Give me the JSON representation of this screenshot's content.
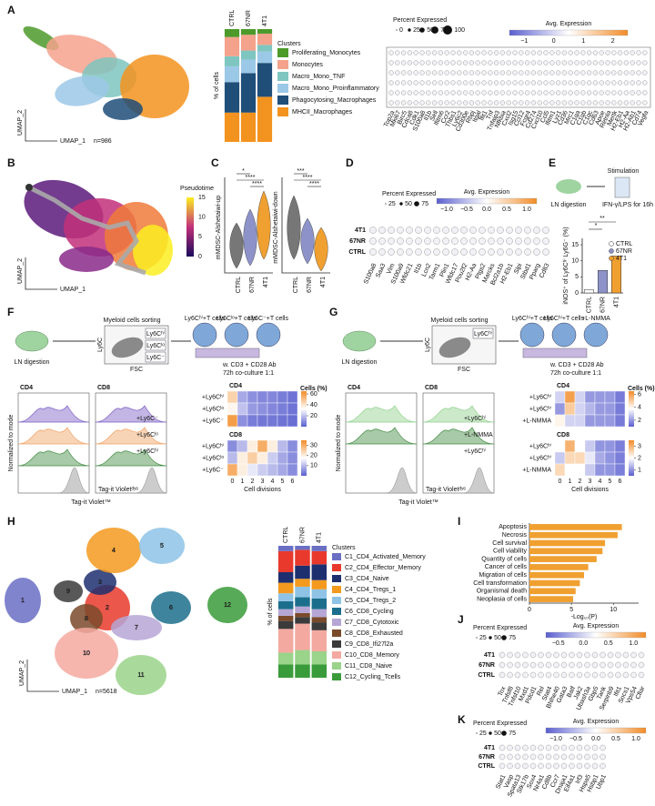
{
  "chart_data": [
    {
      "type": "stacked_bar",
      "categories": [
        "CTRL",
        "67NR",
        "4T1"
      ],
      "y_label": "% of cells",
      "ylim": [
        0,
        100
      ],
      "legend_title": "Clusters",
      "series": [
        {
          "name": "Proliferating_Monocytes",
          "color": "#4c9a2a",
          "values": [
            7,
            5,
            4
          ]
        },
        {
          "name": "Monocytes",
          "color": "#f4a28c",
          "values": [
            17,
            14,
            10
          ]
        },
        {
          "name": "Macro_Mono_TNF",
          "color": "#7fc6c0",
          "values": [
            9,
            8,
            6
          ]
        },
        {
          "name": "Macro_Mono_Proinflammatory",
          "color": "#9cc8e8",
          "values": [
            14,
            12,
            10
          ]
        },
        {
          "name": "Phagocytosing_Macrophages",
          "color": "#1f4e79",
          "values": [
            27,
            35,
            30
          ]
        },
        {
          "name": "MHCII_Macrophages",
          "color": "#f3931f",
          "values": [
            26,
            26,
            40
          ]
        }
      ]
    },
    {
      "type": "bar",
      "categories": [
        "CTRL",
        "67NR",
        "4T1"
      ],
      "values": [
        1,
        7,
        11.5
      ],
      "colors": [
        "#ffffff",
        "#8d93c9",
        "#f0a030"
      ],
      "y_label": "iNOS⁺ of Ly6Cʰⁱ Ly6G⁻ (%)",
      "ylim": [
        0,
        17
      ],
      "yticks": [
        0,
        5,
        10,
        15
      ]
    },
    {
      "type": "heatmap",
      "title": "CD4",
      "rows": [
        "+Ly6Cʰⁱ",
        "+Ly6Cˡᵒ",
        "+Ly6C⁻"
      ],
      "columns": [
        0,
        1,
        2,
        3,
        4,
        5,
        6
      ],
      "zlim": [
        0,
        65
      ],
      "zticks": [
        20,
        40,
        60
      ],
      "values": [
        [
          45,
          15,
          10,
          8,
          8,
          6,
          4
        ],
        [
          35,
          20,
          12,
          10,
          8,
          6,
          4
        ],
        [
          60,
          10,
          6,
          5,
          5,
          4,
          3
        ]
      ]
    },
    {
      "type": "heatmap",
      "title": "CD8",
      "rows": [
        "+Ly6Cʰⁱ",
        "+Ly6Cˡᵒ",
        "+Ly6C⁻"
      ],
      "columns": [
        0,
        1,
        2,
        3,
        4,
        5,
        6
      ],
      "zlim": [
        0,
        35
      ],
      "zticks": [
        10,
        20,
        30
      ],
      "values": [
        [
          5,
          10,
          20,
          30,
          20,
          10,
          5
        ],
        [
          10,
          20,
          25,
          20,
          12,
          8,
          5
        ],
        [
          30,
          20,
          15,
          12,
          10,
          8,
          5
        ]
      ]
    },
    {
      "type": "heatmap",
      "title": "CD4",
      "rows": [
        "+Ly6Cʰⁱ",
        "+Ly6Cʰⁱ",
        "+L-NMMA"
      ],
      "columns": [
        0,
        1,
        2,
        3,
        4,
        5,
        6
      ],
      "zlim": [
        1,
        6.5
      ],
      "zticks": [
        2,
        4,
        6
      ],
      "values": [
        [
          3,
          6,
          3,
          2,
          2,
          2,
          1.5
        ],
        [
          2,
          5,
          3,
          2.5,
          2,
          2,
          1.5
        ],
        [
          4,
          3,
          3,
          2,
          2,
          2,
          1.5
        ]
      ]
    },
    {
      "type": "heatmap",
      "title": "CD8",
      "rows": [
        "+Ly6Cʰⁱ",
        "+Ly6Cʰⁱ",
        "+L-NMMA"
      ],
      "columns": [
        0,
        1,
        2,
        3,
        4,
        5,
        6
      ],
      "zlim": [
        0.5,
        3.5
      ],
      "zticks": [
        1,
        2,
        3
      ],
      "values": [
        [
          2,
          3,
          2,
          1.5,
          1,
          1,
          0.8
        ],
        [
          1.5,
          2.5,
          2.5,
          1.8,
          1.2,
          1,
          0.8
        ],
        [
          2.5,
          2,
          2,
          1.5,
          1,
          1,
          0.8
        ]
      ]
    },
    {
      "type": "stacked_bar",
      "categories": [
        "CTRL",
        "67NR",
        "4T1"
      ],
      "y_label": "% of cells",
      "ylim": [
        0,
        100
      ],
      "legend_title": "Clusters",
      "series": [
        {
          "name": "C1_CD4_Activated_Memory",
          "color": "#6a6fc4",
          "values": [
            4,
            3,
            4
          ]
        },
        {
          "name": "C2_CD4_Effector_Memory",
          "color": "#e8392c",
          "values": [
            16,
            12,
            10
          ]
        },
        {
          "name": "C3_CD4_Naive",
          "color": "#1d2f6f",
          "values": [
            8,
            10,
            12
          ]
        },
        {
          "name": "C4_CD4_Tregs_1",
          "color": "#f39a1e",
          "values": [
            8,
            6,
            7
          ]
        },
        {
          "name": "C5_CD4_Tregs_2",
          "color": "#8ec3e6",
          "values": [
            6,
            8,
            7
          ]
        },
        {
          "name": "C6_CD8_Cycling",
          "color": "#1c6f8c",
          "values": [
            6,
            7,
            8
          ]
        },
        {
          "name": "C7_CD8_Cytotoxic",
          "color": "#b6a6d6",
          "values": [
            5,
            5,
            6
          ]
        },
        {
          "name": "C8_CD8_Exhausted",
          "color": "#7a4a2a",
          "values": [
            4,
            3,
            4
          ]
        },
        {
          "name": "C9_CD8_Ifi27l2a",
          "color": "#3b3b3b",
          "values": [
            6,
            5,
            6
          ]
        },
        {
          "name": "C10_CD8_Memory",
          "color": "#f4a9a0",
          "values": [
            18,
            20,
            16
          ]
        },
        {
          "name": "C11_CD8_Naive",
          "color": "#9ad38a",
          "values": [
            9,
            11,
            10
          ]
        },
        {
          "name": "C12_Cycling_Tcells",
          "color": "#3a9b3a",
          "values": [
            10,
            10,
            10
          ]
        }
      ]
    },
    {
      "type": "hbar",
      "categories": [
        "Apoptosis",
        "Necrosis",
        "Cell survival",
        "Cell viability",
        "Quantity of cells",
        "Cancer of cells",
        "Migration of cells",
        "Cell transformation",
        "Organismal death",
        "Neoplasia of cells"
      ],
      "values": [
        11,
        10.5,
        9,
        8.7,
        8,
        7,
        6.5,
        6,
        5.5,
        5.2
      ],
      "color": "#f0a030",
      "label_colors": [
        "#e08a1e",
        "#e08a1e",
        "#111111",
        "#111111",
        "#111111",
        "#e08a1e",
        "#111111",
        "#e08a1e",
        "#e08a1e",
        "#e08a1e"
      ],
      "x_label": "-Log₁₀(P)",
      "xlim": [
        0,
        13
      ],
      "xticks": [
        0,
        5,
        10
      ]
    }
  ],
  "figure": {
    "panel_labels": [
      "A",
      "B",
      "C",
      "D",
      "E",
      "F",
      "G",
      "H",
      "I",
      "J",
      "K"
    ],
    "a": {
      "x_label": "UMAP_1",
      "y_label": "UMAP_2",
      "n": "n=986",
      "dot_size_title": "Percent Expressed",
      "dot_sizes": [
        0,
        25,
        50,
        75,
        100
      ],
      "color_title": "Avg. Expression",
      "color_ticks": [
        "−1",
        "0",
        "1",
        "2"
      ],
      "genes": [
        "Top2a",
        "Mki67",
        "Birc5",
        "Cdca8",
        "Cdk1",
        "S100a8",
        "Il1b",
        "Sell",
        "Ifitm6",
        "Ccr2",
        "Thbs1",
        "Ly6c2",
        "Cd300e",
        "Rbpj",
        "Itgal",
        "Ifit1",
        "Tnf",
        "Tnfaip3",
        "Nfkbia",
        "Cxcl2",
        "Isg15",
        "Ccl12",
        "Fcgr4",
        "Cd274",
        "Cxcl10",
        "Ccl5",
        "Ifitm1",
        "Lyz1",
        "Cd36",
        "Mrc1",
        "C1qa",
        "C1qb",
        "C1qc",
        "Cd63",
        "Apoe",
        "Retnla",
        "Mertk",
        "H2-Eb1",
        "H2-Aa",
        "H2-Ab1",
        "Cd74",
        "Vegfa"
      ]
    },
    "b": {
      "x_label": "UMAP_1",
      "y_label": "UMAP_2",
      "colorbar_title": "Pseudotime",
      "colorbar_ticks": [
        0,
        5,
        10,
        15
      ]
    },
    "c": {
      "groups": [
        "CTRL",
        "67NR",
        "4T1"
      ],
      "y_labels": [
        "mMDSC-Alshetaiwi-up",
        "mMDSC-Alshetaiwi-down"
      ],
      "stars": [
        [
          "*",
          "****",
          "****"
        ],
        [
          "***",
          "****",
          "****"
        ]
      ]
    },
    "d": {
      "dot_size_title": "Percent Expressed",
      "dot_sizes": [
        25,
        50,
        75
      ],
      "color_title": "Avg. Expression",
      "color_ticks": [
        "−1.0",
        "−0.5",
        "0.0",
        "0.5",
        "1.0"
      ],
      "rows": [
        "4T1",
        "67NR",
        "CTRL"
      ],
      "genes": [
        "S100a8",
        "Saa3",
        "Vim",
        "S100a9",
        "Wfdc21",
        "Il1b",
        "Lcn2",
        "Tarm1",
        "Plin1",
        "Wfdc17",
        "Pou2f2",
        "H2-Aa",
        "Ptgs2",
        "Marcks",
        "Bcl2a1b",
        "H2-Eb1",
        "Slpi",
        "Stbd1",
        "Pparg",
        "Cd83"
      ]
    },
    "e": {
      "steps": [
        "LN digestion",
        "Stimulation",
        "IFN-γ/LPS for 16h"
      ],
      "stars": [
        "*",
        "**"
      ]
    },
    "f": {
      "texts": [
        "LN digestion",
        "Myeloid cells sorting",
        "Ly6C",
        "FSC",
        "w. CD3 + CD28 Ab",
        "72h co-culture 1:1"
      ],
      "gates": [
        "Ly6Cʰⁱ",
        "Ly6Cˡᵒ",
        "Ly6C⁻"
      ],
      "wells": [
        "Ly6Cʰⁱ+T cells",
        "Ly6Cˡᵒ+T cells",
        "Ly6C⁻+T cells"
      ],
      "hist_titles": [
        "CD4",
        "CD8"
      ],
      "y_label": "Normalized to mode",
      "x_label": "Tag-it Violet™",
      "dye": "Tag-it Violetᵈʸᵉ",
      "curves": [
        "+Ly6C⁻",
        "+Ly6Cˡᵒ",
        "+Ly6Cʰⁱ"
      ],
      "cells_label": "Cells (%)",
      "div_label": "Cell divisions"
    },
    "g": {
      "texts": [
        "LN digestion",
        "Myeloid cells sorting",
        "Ly6C",
        "FSC",
        "w. CD3 + CD28 Ab",
        "72h co-culture 1:1"
      ],
      "gates": [
        "Ly6Cʰⁱ"
      ],
      "wells": [
        "Ly6Cʰⁱ+T cells",
        "Ly6Cʰⁱ+T cells",
        "+L-NMMA"
      ],
      "hist_titles": [
        "CD4",
        "CD8"
      ],
      "y_label": "Normalized to mode",
      "x_label": "Tag-it Violet™",
      "dye": "Tag-it Violetᵈʸᵉ",
      "curves": [
        "+Ly6Cʰⁱ",
        "+L-NMMA",
        "+Ly6Cʰⁱ"
      ],
      "cells_label": "Cells (%)",
      "div_label": "Cell divisions"
    },
    "h": {
      "x_label": "UMAP_1",
      "y_label": "UMAP_2",
      "n": "n=5618",
      "cluster_numbers": [
        "1",
        "2",
        "3",
        "4",
        "5",
        "6",
        "7",
        "8",
        "9",
        "10",
        "11",
        "12"
      ]
    },
    "j": {
      "dot_size_title": "Percent Expressed",
      "dot_sizes": [
        25,
        50,
        75
      ],
      "color_title": "Avg. Expression",
      "color_ticks": [
        "−0.5",
        "0.0",
        "0.5",
        "1.0"
      ],
      "rows": [
        "4T1",
        "67NR",
        "CTRL"
      ],
      "genes": [
        "Tox",
        "Tnfsf8",
        "Tnfsf10",
        "Mxd1",
        "Pdcd1",
        "Rel",
        "Stat4",
        "Bhlhe40",
        "Gata3",
        "Batf",
        "Jak2",
        "Ubash3a",
        "Gbp5",
        "Tank",
        "Serpinb9",
        "Ifit1",
        "Socs1",
        "Vps54",
        "Cflar"
      ]
    },
    "k": {
      "dot_size_title": "Percent Expressed",
      "dot_sizes": [
        25,
        50,
        75
      ],
      "color_title": "Avg. Expression",
      "color_ticks": [
        "−1.0",
        "−0.5",
        "0.0",
        "0.5",
        "1.0"
      ],
      "rows": [
        "4T1",
        "67NR",
        "CTRL"
      ],
      "genes": [
        "Stat1",
        "Vasp",
        "Spata13",
        "Stk17b",
        "Sox4",
        "Nr4a1",
        "Cd8b",
        "Ccr7",
        "Dnaja1",
        "Eif4a1",
        "Irf3",
        "Hspa5",
        "Hsbp1",
        "Ubp1"
      ]
    }
  }
}
